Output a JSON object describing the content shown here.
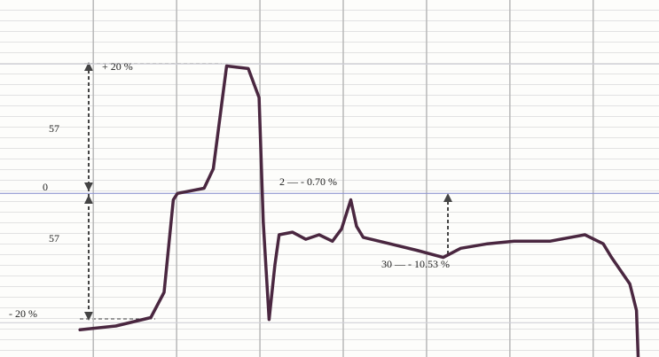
{
  "chart_data": {
    "type": "line",
    "annotations": [
      "+ 20 %",
      "57",
      "0",
      "57",
      "- 20 %",
      "2 — - 0.70 %",
      "30 — - 10.53 %"
    ],
    "x": [
      -0.16,
      0.27,
      0.69,
      0.85,
      0.96,
      1.01,
      1.33,
      1.44,
      1.6,
      1.86,
      1.99,
      2.04,
      2.11,
      2.18,
      2.23,
      2.39,
      2.55,
      2.71,
      2.87,
      2.98,
      3.09,
      3.16,
      3.24,
      3.56,
      3.88,
      4.2,
      4.41,
      4.73,
      5.05,
      5.48,
      5.9,
      6.12,
      6.22,
      6.44,
      6.52,
      6.54
    ],
    "series": [
      {
        "color": "#4a2740",
        "values": [
          -21.1,
          -20.5,
          -19.2,
          -15.3,
          -1.0,
          0,
          0.8,
          3.8,
          19.7,
          19.3,
          14.8,
          -4.4,
          -19.5,
          -11.0,
          -6.4,
          -6.0,
          -7.1,
          -6.4,
          -7.4,
          -5.5,
          -1.0,
          -5.1,
          -6.8,
          -7.8,
          -8.8,
          -9.9,
          -8.5,
          -7.8,
          -7.4,
          -7.4,
          -6.4,
          -7.8,
          -9.9,
          -14.0,
          -18.1,
          -25.3
        ]
      }
    ],
    "xlim": [
      -1.12,
      6.79
    ],
    "ylim": [
      -25.3,
      29.9
    ],
    "xticks": [
      0,
      1,
      2,
      3,
      4,
      5,
      6
    ],
    "yticks": [
      -20,
      0,
      20
    ],
    "grid": true
  }
}
